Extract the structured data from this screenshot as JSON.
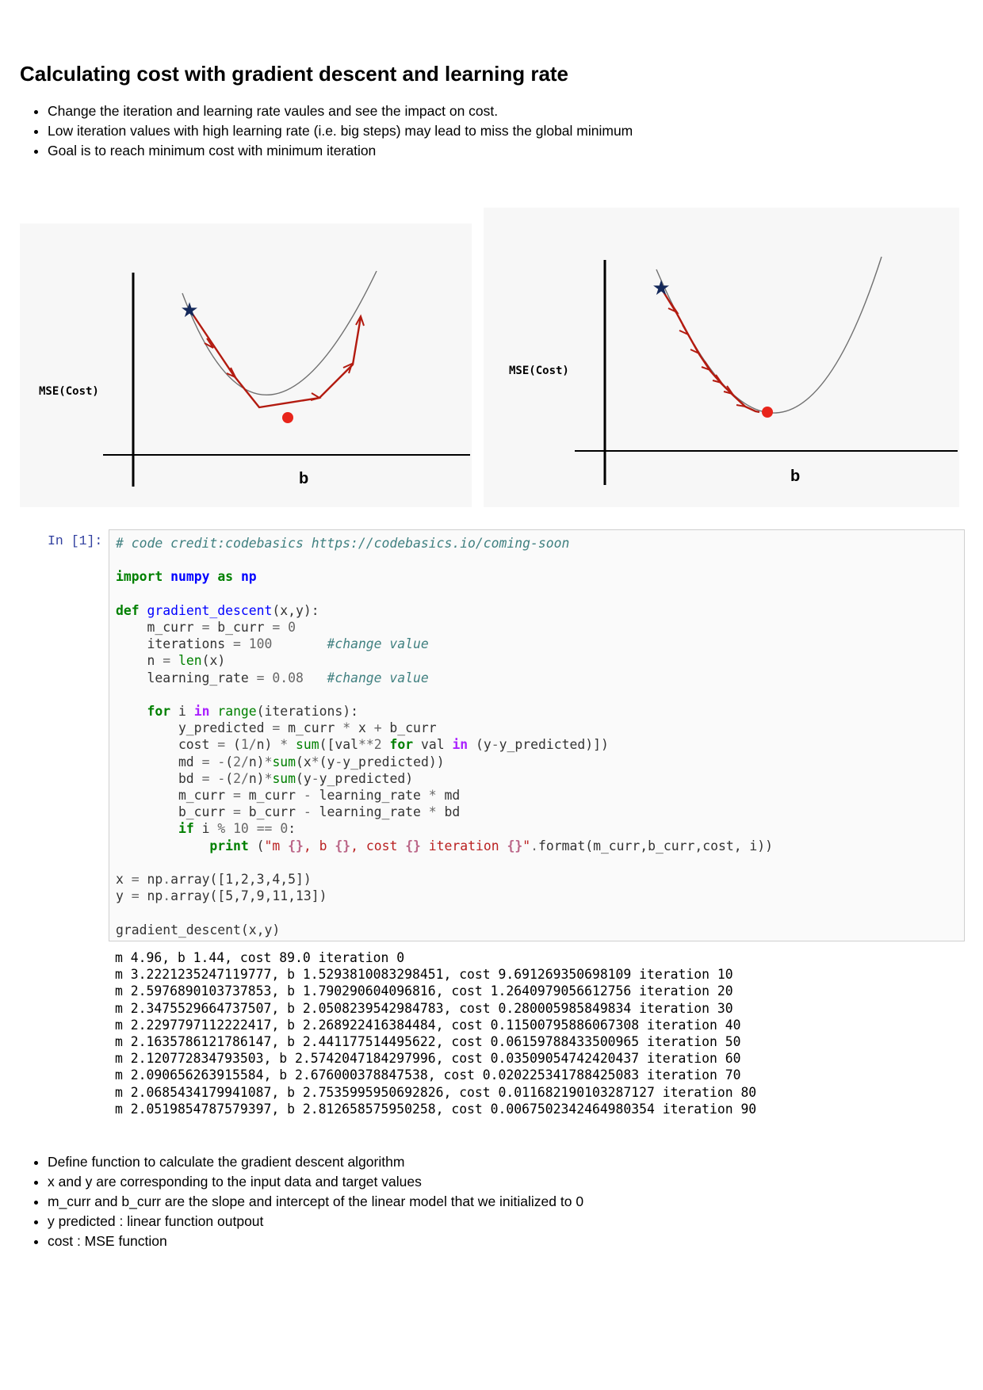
{
  "page": {
    "title": "Calculating cost with gradient descent and learning rate",
    "intro_bullets": [
      "Change the iteration and learning rate vaules and see the impact on cost.",
      "Low iteration values with high learning rate (i.e. big steps) may lead to miss the global minimum",
      "Goal is to reach minimum cost with minimum iteration"
    ],
    "figures": [
      {
        "y_label": "MSE(Cost)",
        "x_label": "b",
        "description": "large steps"
      },
      {
        "y_label": "MSE(Cost)",
        "x_label": "b",
        "description": "small steps"
      }
    ],
    "cell": {
      "prompt": "In [1]:",
      "comment_credit": "# code credit:codebasics https://codebasics.io/coming-soon",
      "iterations_value": "100",
      "learning_rate_value": "0.08",
      "change_comment": "#change value",
      "x_array": "[1,2,3,4,5]",
      "y_array": "[5,7,9,11,13]"
    },
    "output_lines": [
      "m 4.96, b 1.44, cost 89.0 iteration 0",
      "m 3.2221235247119777, b 1.5293810083298451, cost 9.691269350698109 iteration 10",
      "m 2.5976890103737853, b 1.790290604096816, cost 1.2640979056612756 iteration 20",
      "m 2.3475529664737507, b 2.0508239542984783, cost 0.280005985849834 iteration 30",
      "m 2.2297797112222417, b 2.268922416384484, cost 0.11500795886067308 iteration 40",
      "m 2.1635786121786147, b 2.441177514495622, cost 0.06159788433500965 iteration 50",
      "m 2.120772834793503, b 2.5742047184297996, cost 0.03509054742420437 iteration 60",
      "m 2.090656263915584, b 2.676000378847538, cost 0.020225341788425083 iteration 70",
      "m 2.0685434179941087, b 2.7535995950692826, cost 0.011682190103287127 iteration 80",
      "m 2.0519854787579397, b 2.812658575950258, cost 0.0067502342464980354 iteration 90"
    ],
    "outro_bullets": [
      "Define function to calculate the gradient descent algorithm",
      "x and y are corresponding to the input data and target values",
      "m_curr and b_curr are the slope and intercept of the linear model that we initialized to 0",
      "y predicted : linear function outpout",
      "cost : MSE function"
    ]
  },
  "colors": {
    "arrow": "#b31b10",
    "star": "#14285a",
    "dot": "#e8251b",
    "curve": "#707070"
  }
}
